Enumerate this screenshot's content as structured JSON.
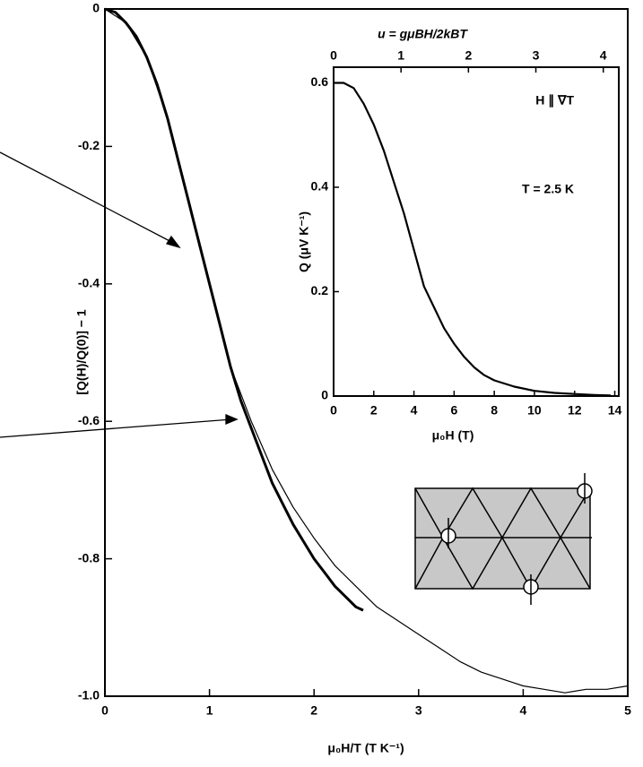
{
  "chart_data": [
    {
      "type": "line",
      "xlabel": "μ₀H/T (T K⁻¹)",
      "ylabel": "[Q(H)/Q(0)] − 1",
      "xlim": [
        0,
        5
      ],
      "xticks": [
        0,
        1,
        2,
        3,
        4,
        5
      ],
      "ylim": [
        -1,
        0
      ],
      "yticks": [
        0,
        -0.2,
        -0.4,
        -0.6,
        -0.8,
        {
          "value": -1,
          "label": "-1.0"
        }
      ],
      "series": [
        {
          "color": "#000000",
          "width": 3,
          "x": [
            0,
            0.1,
            0.2,
            0.3,
            0.4,
            0.5,
            0.6,
            0.7,
            0.8,
            0.9,
            1.0,
            1.1,
            1.2,
            1.3,
            1.4,
            1.5,
            1.6,
            1.7,
            1.8,
            1.9,
            2.0,
            2.1,
            2.2,
            2.3,
            2.4,
            2.47
          ],
          "values": [
            0,
            -0.005,
            -0.02,
            -0.04,
            -0.07,
            -0.11,
            -0.16,
            -0.22,
            -0.28,
            -0.34,
            -0.4,
            -0.46,
            -0.52,
            -0.57,
            -0.61,
            -0.65,
            -0.69,
            -0.72,
            -0.75,
            -0.775,
            -0.8,
            -0.82,
            -0.84,
            -0.855,
            -0.87,
            -0.875
          ]
        },
        {
          "color": "#000000",
          "width": 1.2,
          "x": [
            0,
            0.2,
            0.4,
            0.6,
            0.8,
            1.0,
            1.2,
            1.4,
            1.6,
            1.8,
            2.0,
            2.2,
            2.4,
            2.6,
            2.8,
            3.0,
            3.2,
            3.4,
            3.6,
            3.8,
            4.0,
            4.2,
            4.4,
            4.6,
            4.8,
            5.0
          ],
          "values": [
            0,
            -0.02,
            -0.07,
            -0.16,
            -0.28,
            -0.4,
            -0.52,
            -0.6,
            -0.67,
            -0.725,
            -0.77,
            -0.81,
            -0.84,
            -0.87,
            -0.89,
            -0.91,
            -0.93,
            -0.95,
            -0.965,
            -0.975,
            -0.985,
            -0.99,
            -0.995,
            -0.99,
            -0.99,
            -0.985
          ]
        }
      ]
    },
    {
      "type": "line",
      "xlabel": "μ₀H (T)",
      "ylabel": "Q (μV K⁻¹)",
      "x2label": "u = gμBH/2kBT",
      "annotations": [
        "H ∥ ∇T",
        "T = 2.5 K"
      ],
      "xlim": [
        0,
        14.2
      ],
      "xticks": [
        0,
        2,
        4,
        6,
        8,
        10,
        12,
        14
      ],
      "x2lim": [
        0,
        4.23
      ],
      "x2ticks": [
        0,
        1,
        2,
        3,
        4
      ],
      "ylim": [
        0,
        0.63
      ],
      "yticks": [
        0,
        0.2,
        0.4,
        0.6
      ],
      "series": [
        {
          "color": "#000000",
          "width": 2.2,
          "x": [
            0,
            0.5,
            1,
            1.5,
            2,
            2.5,
            3,
            3.5,
            4,
            4.5,
            5,
            5.5,
            6,
            6.5,
            7,
            7.5,
            8,
            9,
            10,
            11,
            12,
            13,
            13.8
          ],
          "values": [
            0.6,
            0.6,
            0.59,
            0.56,
            0.52,
            0.47,
            0.41,
            0.35,
            0.28,
            0.21,
            0.17,
            0.13,
            0.1,
            0.075,
            0.055,
            0.04,
            0.03,
            0.018,
            0.01,
            0.006,
            0.004,
            0.002,
            0.001
          ]
        }
      ]
    }
  ]
}
